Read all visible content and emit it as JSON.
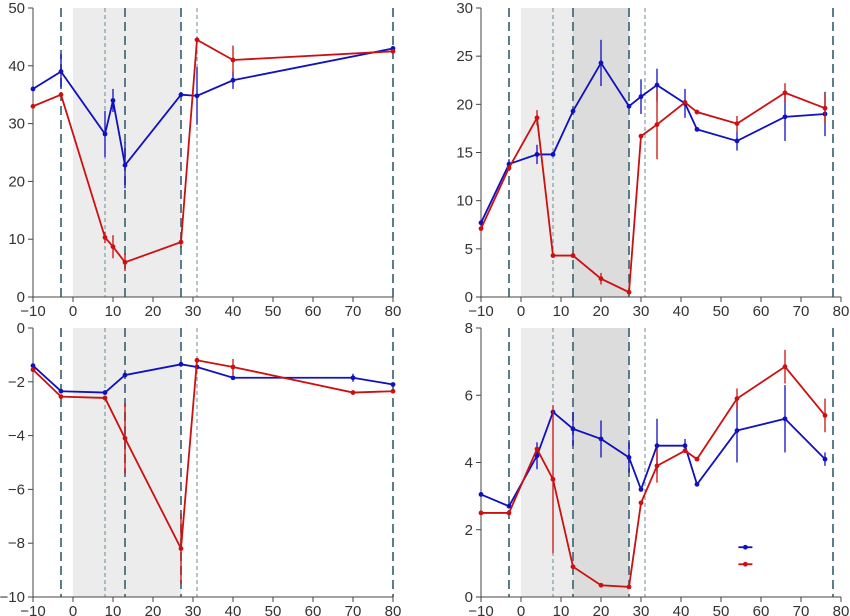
{
  "chart_data": [
    {
      "type": "line",
      "title": "",
      "xlabel": "",
      "ylabel": "",
      "xlim": [
        -10,
        80
      ],
      "ylim": [
        0,
        50
      ],
      "xticks": [
        -10,
        0,
        10,
        20,
        30,
        40,
        50,
        60,
        70,
        80
      ],
      "yticks": [
        0,
        10,
        20,
        30,
        40,
        50
      ],
      "shading": [
        {
          "from": 0,
          "to": 13,
          "tone": "light"
        },
        {
          "from": 13,
          "to": 27,
          "tone": "light"
        }
      ],
      "vlines": [
        {
          "x": -3,
          "style": "thick"
        },
        {
          "x": 8,
          "style": "thin"
        },
        {
          "x": 13,
          "style": "thick"
        },
        {
          "x": 27,
          "style": "thick"
        },
        {
          "x": 31,
          "style": "thin"
        },
        {
          "x": 80,
          "style": "thick"
        }
      ],
      "series": [
        {
          "color": "#1010c0",
          "points": [
            {
              "x": -10,
              "y": 36,
              "err": 0
            },
            {
              "x": -3,
              "y": 39,
              "err": 3
            },
            {
              "x": 8,
              "y": 28.2,
              "err": 4
            },
            {
              "x": 10,
              "y": 34,
              "err": 2
            },
            {
              "x": 13,
              "y": 22.8,
              "err": 4
            },
            {
              "x": 27,
              "y": 35,
              "err": 0
            },
            {
              "x": 31,
              "y": 34.8,
              "err": 5
            },
            {
              "x": 40,
              "y": 37.5,
              "err": 1.5
            },
            {
              "x": 80,
              "y": 43,
              "err": 0
            }
          ]
        },
        {
          "color": "#cc1010",
          "points": [
            {
              "x": -10,
              "y": 33,
              "err": 0
            },
            {
              "x": -3,
              "y": 35,
              "err": 0
            },
            {
              "x": 8,
              "y": 10.3,
              "err": 1
            },
            {
              "x": 10,
              "y": 8.7,
              "err": 2
            },
            {
              "x": 13,
              "y": 6,
              "err": 1.5
            },
            {
              "x": 27,
              "y": 9.5,
              "err": 1
            },
            {
              "x": 31,
              "y": 44.5,
              "err": 0
            },
            {
              "x": 40,
              "y": 41,
              "err": 2.5
            },
            {
              "x": 80,
              "y": 42.5,
              "err": 0
            }
          ]
        }
      ]
    },
    {
      "type": "line",
      "title": "",
      "xlabel": "",
      "ylabel": "",
      "xlim": [
        -10,
        80
      ],
      "ylim": [
        0,
        30
      ],
      "xticks": [
        -10,
        0,
        10,
        20,
        30,
        40,
        50,
        60,
        70,
        80
      ],
      "yticks": [
        0,
        5,
        10,
        15,
        20,
        25,
        30
      ],
      "shading": [
        {
          "from": 0,
          "to": 13,
          "tone": "light"
        },
        {
          "from": 13,
          "to": 27,
          "tone": "dark"
        }
      ],
      "vlines": [
        {
          "x": -3,
          "style": "thick"
        },
        {
          "x": 8,
          "style": "thin"
        },
        {
          "x": 13,
          "style": "thick"
        },
        {
          "x": 27,
          "style": "thick"
        },
        {
          "x": 31,
          "style": "thin"
        },
        {
          "x": 78,
          "style": "thick"
        }
      ],
      "series": [
        {
          "color": "#1010c0",
          "points": [
            {
              "x": -10,
              "y": 7.7,
              "err": 0
            },
            {
              "x": -3,
              "y": 13.8,
              "err": 0.5
            },
            {
              "x": 4,
              "y": 14.8,
              "err": 1
            },
            {
              "x": 8,
              "y": 14.8,
              "err": 0
            },
            {
              "x": 13,
              "y": 19.3,
              "err": 0
            },
            {
              "x": 20,
              "y": 24.3,
              "err": 2.4
            },
            {
              "x": 27,
              "y": 19.8,
              "err": 0
            },
            {
              "x": 30,
              "y": 20.8,
              "err": 1.8
            },
            {
              "x": 34,
              "y": 22,
              "err": 1.7
            },
            {
              "x": 41,
              "y": 20.1,
              "err": 1.5
            },
            {
              "x": 44,
              "y": 17.4,
              "err": 0
            },
            {
              "x": 54,
              "y": 16.2,
              "err": 1
            },
            {
              "x": 66,
              "y": 18.7,
              "err": 2.5
            },
            {
              "x": 76,
              "y": 19,
              "err": 2.3
            }
          ]
        },
        {
          "color": "#cc1010",
          "points": [
            {
              "x": -10,
              "y": 7.1,
              "err": 0
            },
            {
              "x": -3,
              "y": 13.4,
              "err": 0
            },
            {
              "x": 4,
              "y": 18.6,
              "err": 0.8
            },
            {
              "x": 8,
              "y": 4.3,
              "err": 0
            },
            {
              "x": 13,
              "y": 4.3,
              "err": 0
            },
            {
              "x": 20,
              "y": 1.9,
              "err": 0.6
            },
            {
              "x": 27,
              "y": 0.5,
              "err": 0
            },
            {
              "x": 30,
              "y": 16.7,
              "err": 0
            },
            {
              "x": 34,
              "y": 17.9,
              "err": 3.6
            },
            {
              "x": 41,
              "y": 20.2,
              "err": 0
            },
            {
              "x": 44,
              "y": 19.2,
              "err": 0
            },
            {
              "x": 54,
              "y": 18,
              "err": 0.8
            },
            {
              "x": 66,
              "y": 21.2,
              "err": 1
            },
            {
              "x": 76,
              "y": 19.6,
              "err": 1.6
            }
          ]
        }
      ]
    },
    {
      "type": "line",
      "title": "",
      "xlabel": "",
      "ylabel": "",
      "xlim": [
        -10,
        80
      ],
      "ylim": [
        -10,
        0
      ],
      "xticks": [
        -10,
        0,
        10,
        20,
        30,
        40,
        50,
        60,
        70,
        80
      ],
      "yticks": [
        -10,
        -8,
        -6,
        -4,
        -2,
        0
      ],
      "shading": [
        {
          "from": 0,
          "to": 13,
          "tone": "light"
        },
        {
          "from": 13,
          "to": 27,
          "tone": "light"
        }
      ],
      "vlines": [
        {
          "x": -3,
          "style": "thick"
        },
        {
          "x": 8,
          "style": "thin"
        },
        {
          "x": 13,
          "style": "thick"
        },
        {
          "x": 27,
          "style": "thick"
        },
        {
          "x": 31,
          "style": "thin"
        },
        {
          "x": 80,
          "style": "thick"
        }
      ],
      "series": [
        {
          "color": "#1010c0",
          "points": [
            {
              "x": -10,
              "y": -1.4,
              "err": 0
            },
            {
              "x": -3,
              "y": -2.35,
              "err": 0
            },
            {
              "x": 8,
              "y": -2.4,
              "err": 0
            },
            {
              "x": 13,
              "y": -1.75,
              "err": 0
            },
            {
              "x": 27,
              "y": -1.35,
              "err": 0
            },
            {
              "x": 31,
              "y": -1.45,
              "err": 0
            },
            {
              "x": 40,
              "y": -1.85,
              "err": 0
            },
            {
              "x": 70,
              "y": -1.85,
              "err": 0.15
            },
            {
              "x": 80,
              "y": -2.1,
              "err": 0
            }
          ]
        },
        {
          "color": "#cc1010",
          "points": [
            {
              "x": -10,
              "y": -1.55,
              "err": 0
            },
            {
              "x": -3,
              "y": -2.55,
              "err": 0
            },
            {
              "x": 8,
              "y": -2.6,
              "err": 0
            },
            {
              "x": 13,
              "y": -4.1,
              "err": 1.3
            },
            {
              "x": 27,
              "y": -8.2,
              "err": 1.3
            },
            {
              "x": 31,
              "y": -1.2,
              "err": 0
            },
            {
              "x": 40,
              "y": -1.45,
              "err": 0.3
            },
            {
              "x": 70,
              "y": -2.4,
              "err": 0
            },
            {
              "x": 80,
              "y": -2.35,
              "err": 0
            }
          ]
        }
      ]
    },
    {
      "type": "line",
      "title": "",
      "xlabel": "",
      "ylabel": "",
      "xlim": [
        -10,
        80
      ],
      "ylim": [
        0,
        8
      ],
      "xticks": [
        -10,
        0,
        10,
        20,
        30,
        40,
        50,
        60,
        70,
        80
      ],
      "yticks": [
        0,
        2,
        4,
        6,
        8
      ],
      "shading": [
        {
          "from": 0,
          "to": 13,
          "tone": "light"
        },
        {
          "from": 13,
          "to": 27,
          "tone": "dark"
        }
      ],
      "vlines": [
        {
          "x": -3,
          "style": "thick"
        },
        {
          "x": 8,
          "style": "thin"
        },
        {
          "x": 13,
          "style": "thick"
        },
        {
          "x": 27,
          "style": "thick"
        },
        {
          "x": 31,
          "style": "thin"
        },
        {
          "x": 78,
          "style": "thick"
        }
      ],
      "legend": {
        "placement": "bottom-right",
        "entries": [
          "",
          ""
        ]
      },
      "series": [
        {
          "color": "#1010c0",
          "points": [
            {
              "x": -10,
              "y": 3.05,
              "err": 0
            },
            {
              "x": -3,
              "y": 2.7,
              "err": 0
            },
            {
              "x": 4,
              "y": 4.2,
              "err": 0.4
            },
            {
              "x": 8,
              "y": 5.5,
              "err": 0
            },
            {
              "x": 13,
              "y": 5,
              "err": 0.5
            },
            {
              "x": 20,
              "y": 4.7,
              "err": 0.55
            },
            {
              "x": 27,
              "y": 4.15,
              "err": 0.45
            },
            {
              "x": 30,
              "y": 3.2,
              "err": 0
            },
            {
              "x": 34,
              "y": 4.5,
              "err": 0.8
            },
            {
              "x": 41,
              "y": 4.5,
              "err": 0.2
            },
            {
              "x": 44,
              "y": 3.35,
              "err": 0
            },
            {
              "x": 54,
              "y": 4.95,
              "err": 0.95
            },
            {
              "x": 66,
              "y": 5.3,
              "err": 1
            },
            {
              "x": 76,
              "y": 4.1,
              "err": 0.2
            }
          ]
        },
        {
          "color": "#cc1010",
          "points": [
            {
              "x": -10,
              "y": 2.5,
              "err": 0
            },
            {
              "x": -3,
              "y": 2.5,
              "err": 0
            },
            {
              "x": 4,
              "y": 4.4,
              "err": 0
            },
            {
              "x": 8,
              "y": 3.5,
              "err": 2.2
            },
            {
              "x": 13,
              "y": 0.9,
              "err": 0
            },
            {
              "x": 20,
              "y": 0.35,
              "err": 0
            },
            {
              "x": 27,
              "y": 0.3,
              "err": 0
            },
            {
              "x": 30,
              "y": 2.8,
              "err": 0
            },
            {
              "x": 34,
              "y": 3.9,
              "err": 0.5
            },
            {
              "x": 41,
              "y": 4.35,
              "err": 0
            },
            {
              "x": 44,
              "y": 4.1,
              "err": 0
            },
            {
              "x": 54,
              "y": 5.9,
              "err": 0.3
            },
            {
              "x": 66,
              "y": 6.85,
              "err": 0.5
            },
            {
              "x": 76,
              "y": 5.4,
              "err": 0.5
            }
          ]
        }
      ]
    }
  ]
}
